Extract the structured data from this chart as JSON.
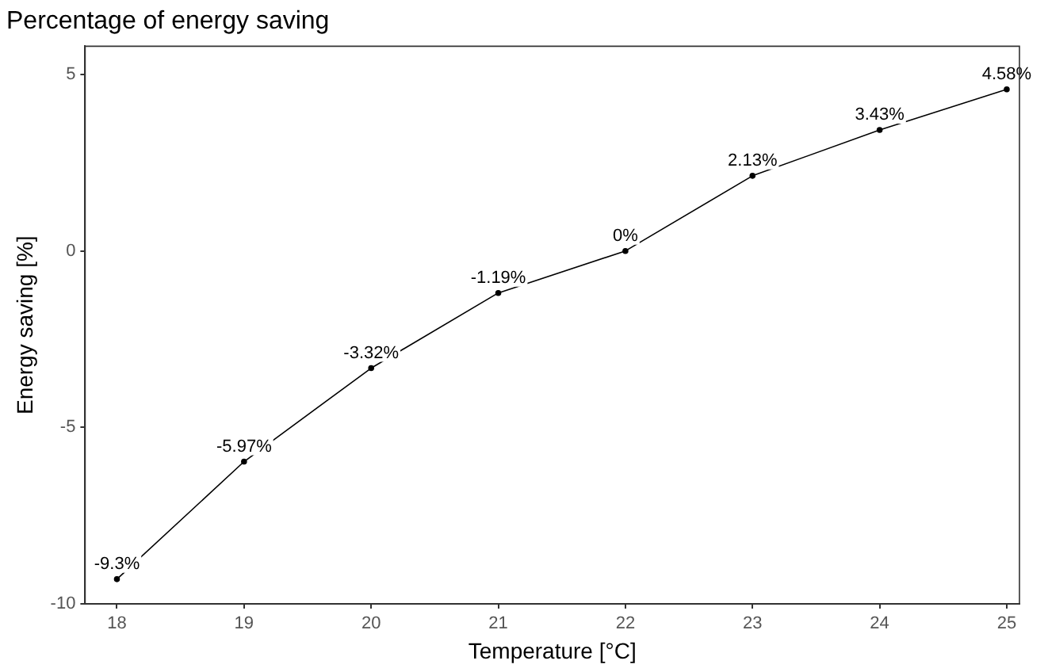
{
  "chart_data": {
    "type": "line",
    "title": "Percentage of energy saving",
    "xlabel": "Temperature [°C]",
    "ylabel": "Energy saving [%]",
    "x": [
      18,
      19,
      20,
      21,
      22,
      23,
      24,
      25
    ],
    "series": [
      {
        "color": "#000000",
        "values": [
          -9.3,
          -5.97,
          -3.32,
          -1.19,
          0,
          2.13,
          3.43,
          4.58
        ],
        "value_labels": [
          "-9.3%",
          "-5.97%",
          "-3.32%",
          "-1.19%",
          "0%",
          "2.13%",
          "3.43%",
          "4.58%"
        ]
      }
    ],
    "xlim": [
      17.75,
      25.1
    ],
    "xticks": [
      18,
      19,
      20,
      21,
      22,
      23,
      24,
      25
    ],
    "ylim": [
      -10,
      5.8
    ],
    "yticks": [
      -10,
      -5,
      0,
      5
    ],
    "grid": false,
    "legend": false,
    "marker": "circle",
    "line_style": "solid"
  }
}
